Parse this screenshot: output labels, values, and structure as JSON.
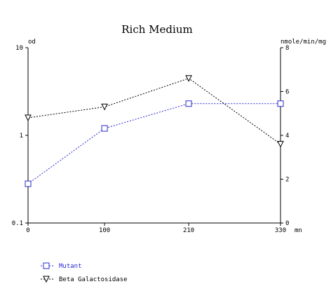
{
  "chart_data": {
    "type": "line",
    "title": "Rich Medium",
    "y_left_label": "od",
    "y_right_label": "nmole/min/mg",
    "x_unit": "mn",
    "x": [
      0,
      100,
      210,
      330
    ],
    "x_tick_labels": [
      "0",
      "100",
      "210",
      "330"
    ],
    "x_range": [
      0,
      330
    ],
    "y_left": {
      "scale": "log",
      "range": [
        0.1,
        10
      ],
      "ticks": [
        0.1,
        1,
        10
      ],
      "tick_labels": [
        "0.1",
        "1",
        "10"
      ]
    },
    "y_right": {
      "scale": "linear",
      "range": [
        0,
        8
      ],
      "ticks": [
        0,
        2,
        4,
        6,
        8
      ],
      "tick_labels": [
        "0",
        "2",
        "4",
        "6",
        "8"
      ]
    },
    "grid": false,
    "legend_placement": "bottom-left",
    "series": [
      {
        "name": "Mutant",
        "axis": "left",
        "marker": "square",
        "color": "#2a2ad0",
        "values": [
          0.28,
          1.2,
          2.3,
          2.3
        ]
      },
      {
        "name": "Beta Galactosidase",
        "axis": "right",
        "marker": "triangle-down",
        "color": "#000000",
        "values": [
          4.8,
          5.3,
          6.6,
          3.6
        ]
      }
    ]
  }
}
